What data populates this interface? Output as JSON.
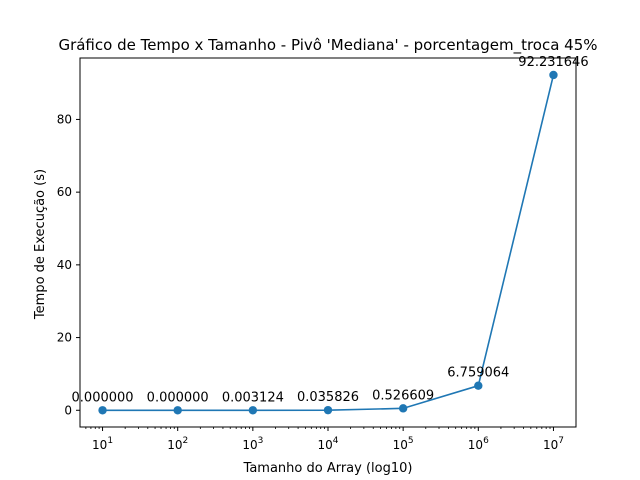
{
  "chart_data": {
    "type": "line",
    "title": "Gráfico de Tempo x Tamanho - Pivô 'Mediana' - porcentagem_troca 45%",
    "xlabel": "Tamanho do Array (log10)",
    "ylabel": "Tempo de Execução (s)",
    "x_scale": "log",
    "x": [
      10,
      100,
      1000,
      10000,
      100000,
      1000000,
      10000000
    ],
    "x_tick_labels": [
      {
        "base": "10",
        "exp": "1"
      },
      {
        "base": "10",
        "exp": "2"
      },
      {
        "base": "10",
        "exp": "3"
      },
      {
        "base": "10",
        "exp": "4"
      },
      {
        "base": "10",
        "exp": "5"
      },
      {
        "base": "10",
        "exp": "6"
      },
      {
        "base": "10",
        "exp": "7"
      }
    ],
    "y_ticks": [
      0,
      20,
      40,
      60,
      80
    ],
    "y_tick_labels": [
      "0",
      "20",
      "40",
      "60",
      "80"
    ],
    "ylim": [
      -4.6,
      96.9
    ],
    "series": [
      {
        "values": [
          0.0,
          0.0,
          0.003124,
          0.035826,
          0.526609,
          6.759064,
          92.231646
        ],
        "labels": [
          "0.000000",
          "0.000000",
          "0.003124",
          "0.035826",
          "0.526609",
          "6.759064",
          "92.231646"
        ],
        "color": "#1f77b4",
        "marker": "circle"
      }
    ],
    "grid": false,
    "legend": "none"
  }
}
